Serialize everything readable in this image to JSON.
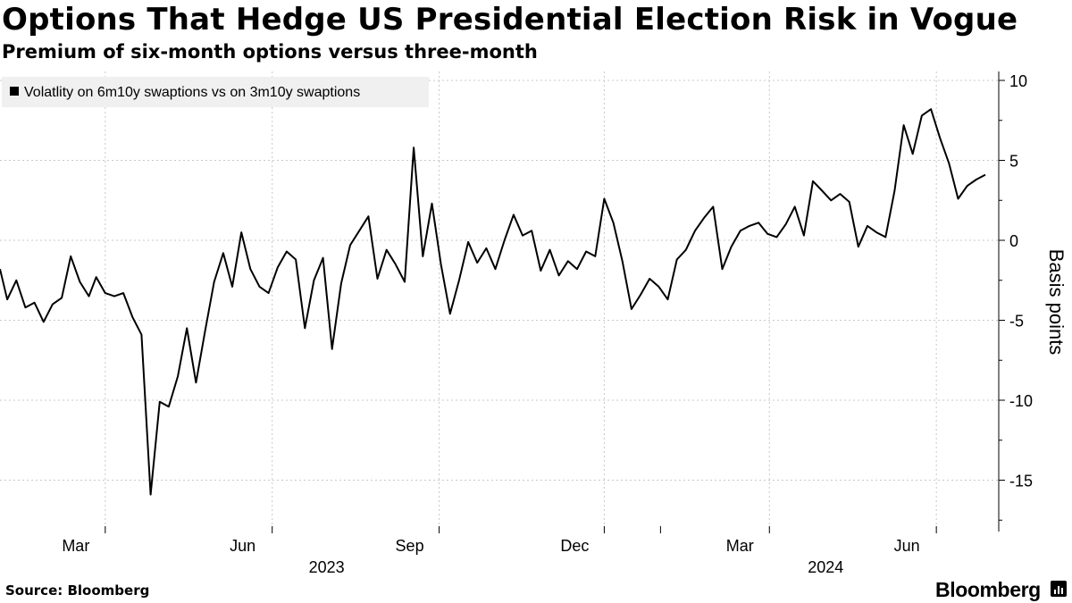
{
  "header": {
    "title": "Options That Hedge US Presidential Election Risk in Vogue",
    "subtitle": "Premium of six-month options versus three-month"
  },
  "footer": {
    "source": "Source: Bloomberg",
    "brand": "Bloomberg"
  },
  "colors": {
    "line": "#000000",
    "grid": "#c8c8c8",
    "legend_bg": "#f0f0f0",
    "axis": "#000000"
  },
  "chart_data": {
    "type": "line",
    "title": "Options That Hedge US Presidential Election Risk in Vogue",
    "subtitle": "Premium of six-month options versus three-month",
    "ylabel": "Basis points",
    "xlabel": "",
    "y_axis_side": "right",
    "ylim": [
      -18,
      10.5
    ],
    "xlim": [
      "2023-01-02",
      "2024-06-28"
    ],
    "y_ticks": [
      10,
      5,
      0,
      -5,
      -10,
      -15
    ],
    "y_tick_labels": [
      "10",
      "5",
      "0",
      "-5",
      "-10",
      "-15"
    ],
    "x_month_ticks": [
      "2023-03-01",
      "2023-06-01",
      "2023-09-01",
      "2023-12-01",
      "2024-03-01",
      "2024-06-01"
    ],
    "x_month_labels": [
      "Mar",
      "Jun",
      "Sep",
      "Dec",
      "Mar",
      "Jun"
    ],
    "x_year_labels": [
      {
        "label": "2023",
        "date": "2023-07-01"
      },
      {
        "label": "2024",
        "date": "2024-04-01"
      }
    ],
    "grid": true,
    "legend_position": "top-left",
    "series": [
      {
        "name": "Volatlity on 6m10y swaptions vs on 3m10y swaptions",
        "color": "#000000",
        "x": [
          "2023-01-02",
          "2023-01-06",
          "2023-01-11",
          "2023-01-16",
          "2023-01-21",
          "2023-01-26",
          "2023-01-31",
          "2023-02-05",
          "2023-02-10",
          "2023-02-15",
          "2023-02-20",
          "2023-02-24",
          "2023-03-01",
          "2023-03-06",
          "2023-03-11",
          "2023-03-16",
          "2023-03-21",
          "2023-03-26",
          "2023-03-31",
          "2023-04-05",
          "2023-04-10",
          "2023-04-15",
          "2023-04-20",
          "2023-04-25",
          "2023-04-30",
          "2023-05-05",
          "2023-05-10",
          "2023-05-15",
          "2023-05-20",
          "2023-05-25",
          "2023-05-30",
          "2023-06-04",
          "2023-06-09",
          "2023-06-14",
          "2023-06-19",
          "2023-06-24",
          "2023-06-29",
          "2023-07-04",
          "2023-07-09",
          "2023-07-14",
          "2023-07-19",
          "2023-07-24",
          "2023-07-29",
          "2023-08-03",
          "2023-08-08",
          "2023-08-13",
          "2023-08-18",
          "2023-08-23",
          "2023-08-28",
          "2023-09-02",
          "2023-09-07",
          "2023-09-12",
          "2023-09-17",
          "2023-09-22",
          "2023-09-27",
          "2023-10-02",
          "2023-10-07",
          "2023-10-12",
          "2023-10-17",
          "2023-10-22",
          "2023-10-27",
          "2023-11-01",
          "2023-11-06",
          "2023-11-11",
          "2023-11-16",
          "2023-11-21",
          "2023-11-26",
          "2023-12-01",
          "2023-12-06",
          "2023-12-11",
          "2023-12-16",
          "2023-12-21",
          "2023-12-26",
          "2023-12-31",
          "2024-01-05",
          "2024-01-10",
          "2024-01-15",
          "2024-01-20",
          "2024-01-25",
          "2024-01-30",
          "2024-02-04",
          "2024-02-09",
          "2024-02-14",
          "2024-02-19",
          "2024-02-24",
          "2024-02-29",
          "2024-03-05",
          "2024-03-10",
          "2024-03-15",
          "2024-03-20",
          "2024-03-25",
          "2024-03-30",
          "2024-04-04",
          "2024-04-09",
          "2024-04-14",
          "2024-04-19",
          "2024-04-24",
          "2024-04-29",
          "2024-05-04",
          "2024-05-09",
          "2024-05-14",
          "2024-05-19",
          "2024-05-24",
          "2024-05-29",
          "2024-06-03",
          "2024-06-08",
          "2024-06-13",
          "2024-06-18",
          "2024-06-23",
          "2024-06-28"
        ],
        "values": [
          -1.8,
          -3.7,
          -2.5,
          -4.2,
          -3.9,
          -5.1,
          -4.0,
          -3.6,
          -1.0,
          -2.6,
          -3.5,
          -2.3,
          -3.3,
          -3.5,
          -3.3,
          -4.8,
          -5.9,
          -15.9,
          -10.1,
          -10.4,
          -8.5,
          -5.5,
          -8.9,
          -5.7,
          -2.6,
          -0.8,
          -2.9,
          0.5,
          -1.8,
          -2.9,
          -3.3,
          -1.7,
          -0.7,
          -1.2,
          -5.5,
          -2.5,
          -1.1,
          -6.8,
          -2.7,
          -0.3,
          0.6,
          1.5,
          -2.4,
          -0.6,
          -1.5,
          -2.6,
          5.8,
          -1.0,
          2.3,
          -1.5,
          -4.6,
          -2.5,
          -0.1,
          -1.4,
          -0.5,
          -1.8,
          0.0,
          1.6,
          0.3,
          0.6,
          -1.9,
          -0.6,
          -2.2,
          -1.3,
          -1.8,
          -0.7,
          -1.0,
          2.6,
          1.1,
          -1.3,
          -4.3,
          -3.4,
          -2.4,
          -2.9,
          -3.7,
          -1.2,
          -0.6,
          0.6,
          1.4,
          2.1,
          -1.8,
          -0.4,
          0.6,
          0.9,
          1.1,
          0.4,
          0.2,
          1.0,
          2.1,
          0.3,
          3.7,
          3.1,
          2.5,
          2.9,
          2.4,
          -0.4,
          0.9,
          0.5,
          0.2,
          3.1,
          7.2,
          5.4,
          7.8,
          8.2,
          6.4,
          4.8,
          2.6,
          3.4,
          3.8,
          4.1
        ]
      }
    ]
  }
}
